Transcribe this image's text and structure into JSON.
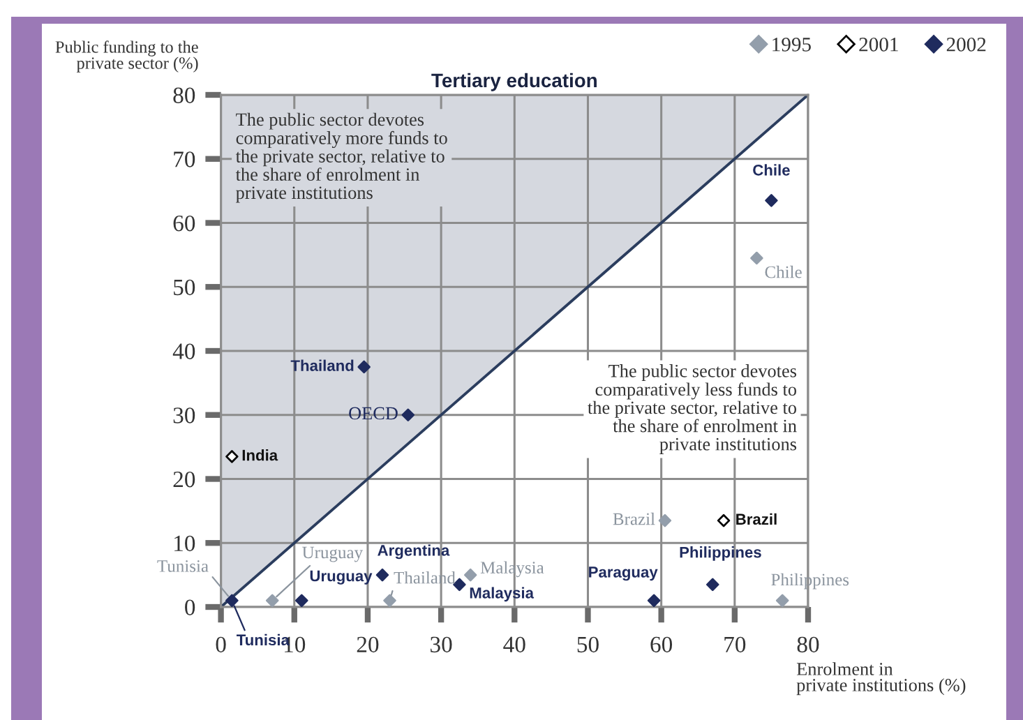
{
  "chart_data": {
    "type": "scatter",
    "title": "Tertiary education",
    "xlabel": "Enrolment in\nprivate institutions (%)",
    "ylabel": "Public funding to the\nprivate sector (%)",
    "xlim": [
      0,
      80
    ],
    "ylim": [
      0,
      80
    ],
    "xticks": [
      0,
      10,
      20,
      30,
      40,
      50,
      60,
      70,
      80
    ],
    "yticks": [
      0,
      10,
      20,
      30,
      40,
      50,
      60,
      70,
      80
    ],
    "grid": true,
    "legend": "top right",
    "series": [
      {
        "type": "line",
        "x": [
          0,
          80
        ],
        "values": [
          0,
          80
        ],
        "lower": [
          0,
          80
        ],
        "upper": [
          80,
          80
        ],
        "color": "#2b3d5e"
      },
      {
        "name": "1995",
        "marker": "diamond",
        "color": "#939eab",
        "x": [
          7,
          23,
          34,
          60.5,
          76.5,
          73
        ],
        "values": [
          1,
          1,
          5,
          13.5,
          1,
          54.5
        ]
      },
      {
        "name": "2001",
        "marker": "diamond",
        "color": "#ffffff",
        "x": [
          1.5,
          68.5
        ],
        "values": [
          23.5,
          13.5
        ]
      },
      {
        "name": "2002",
        "marker": "diamond",
        "color": "#1f2b5e",
        "x": [
          1.5,
          11,
          22,
          19.5,
          25.5,
          32.5,
          59,
          67,
          75
        ],
        "values": [
          1,
          1,
          5,
          37.5,
          30,
          3.5,
          1,
          3.5,
          63.5
        ]
      }
    ],
    "annotations": [
      {
        "text": "Tunisia",
        "x": 1.5,
        "y": 1
      },
      {
        "text": "Tunisia",
        "x": 1.5,
        "y": 1
      },
      {
        "text": "Uruguay",
        "x": 7,
        "y": 1
      },
      {
        "text": "Uruguay",
        "x": 11,
        "y": 1
      },
      {
        "text": "Argentina",
        "x": 22,
        "y": 5
      },
      {
        "text": "Thailand",
        "x": 23,
        "y": 1
      },
      {
        "text": "Malaysia",
        "x": 34,
        "y": 5
      },
      {
        "text": "Malaysia",
        "x": 32.5,
        "y": 3.5
      },
      {
        "text": "Paraguay",
        "x": 59,
        "y": 1
      },
      {
        "text": "Philippines",
        "x": 67,
        "y": 3.5
      },
      {
        "text": "Philippines",
        "x": 76.5,
        "y": 1
      },
      {
        "text": "Brazil",
        "x": 60.5,
        "y": 13.5
      },
      {
        "text": "Brazil",
        "x": 68.5,
        "y": 13.5
      },
      {
        "text": "Chile",
        "x": 75,
        "y": 63.5
      },
      {
        "text": "Chile",
        "x": 73,
        "y": 54.5
      },
      {
        "text": "India",
        "x": 1.5,
        "y": 23.5
      },
      {
        "text": "Thailand",
        "x": 19.5,
        "y": 37.5
      },
      {
        "text": "OECD",
        "x": 25.5,
        "y": 30
      },
      "The public sector devotes\ncomparatively more funds to\nthe private sector, relative to\nthe share of enrolment in\nprivate institutions",
      "The public sector devotes\ncomparatively less funds to\nthe private sector, relative to\nthe share of enrolment in\nprivate institutions"
    ]
  }
}
